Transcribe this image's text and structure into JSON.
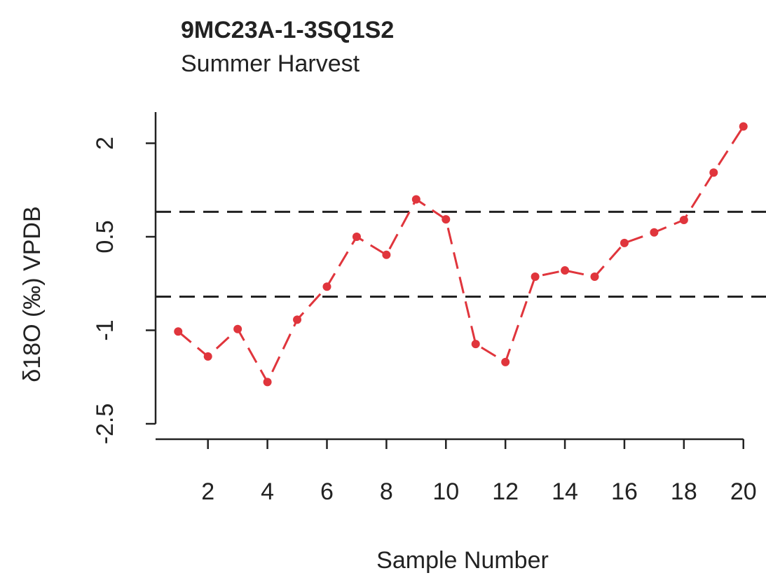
{
  "chart_data": {
    "type": "line",
    "title": "9MC23A-1-3SQ1S2",
    "subtitle": "Summer Harvest",
    "x_label": "Sample Number",
    "y_label": "δ18O (‰) VPDB",
    "x": [
      1,
      2,
      3,
      4,
      5,
      6,
      7,
      8,
      9,
      10,
      11,
      12,
      13,
      14,
      15,
      16,
      17,
      18,
      19,
      20
    ],
    "series": [
      {
        "name": "δ18O",
        "color": "#e0353c",
        "values": [
          -1.02,
          -1.42,
          -0.98,
          -1.83,
          -0.83,
          -0.3,
          0.5,
          0.21,
          1.1,
          0.78,
          -1.22,
          -1.51,
          -0.14,
          -0.04,
          -0.14,
          0.4,
          0.57,
          0.77,
          1.53,
          2.27
        ]
      }
    ],
    "reference_lines": [
      0.9,
      -0.46
    ],
    "xlim": [
      0.24,
      20.76
    ],
    "xticks": [
      2,
      4,
      6,
      8,
      10,
      12,
      14,
      16,
      18,
      20
    ],
    "ylim": [
      -2.5,
      2.5
    ],
    "yticks": [
      -2.5,
      -1.0,
      0.5,
      2.0
    ]
  }
}
